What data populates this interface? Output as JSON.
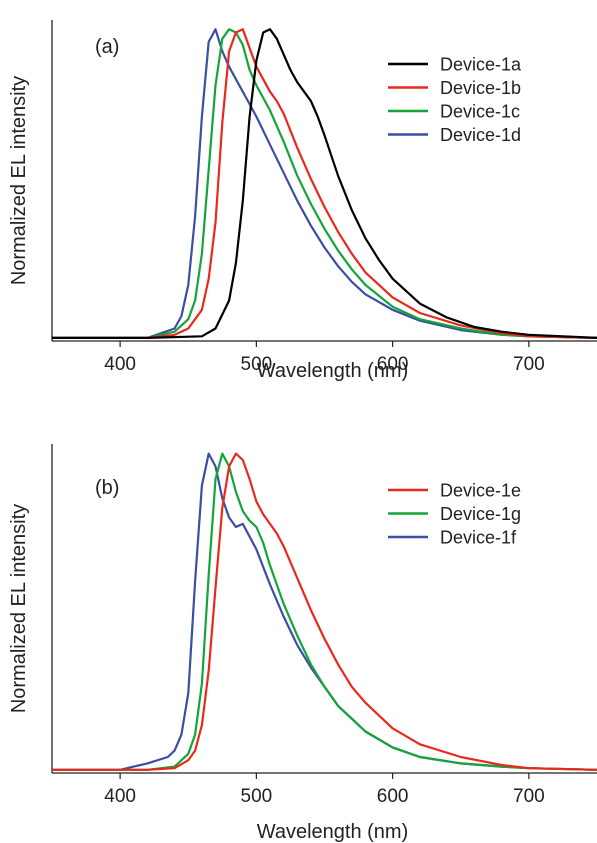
{
  "chart_data": [
    {
      "type": "line",
      "panel_label": "(a)",
      "xlabel": "Wavelength (nm)",
      "ylabel": "Normalized EL intensity",
      "xlim": [
        350,
        750
      ],
      "ylim": [
        0,
        1.03
      ],
      "xticks": [
        400,
        500,
        600,
        700
      ],
      "grid": false,
      "legend_position": "top-right",
      "series": [
        {
          "name": "Device-1a",
          "color": "#000000",
          "x": [
            350,
            420,
            460,
            470,
            480,
            485,
            490,
            495,
            500,
            505,
            510,
            515,
            520,
            525,
            530,
            535,
            540,
            545,
            550,
            560,
            570,
            580,
            590,
            600,
            620,
            640,
            660,
            680,
            700,
            750
          ],
          "y": [
            0.01,
            0.01,
            0.015,
            0.04,
            0.13,
            0.25,
            0.45,
            0.72,
            0.9,
            0.99,
            1.0,
            0.97,
            0.92,
            0.87,
            0.83,
            0.8,
            0.77,
            0.72,
            0.66,
            0.53,
            0.42,
            0.33,
            0.26,
            0.2,
            0.12,
            0.075,
            0.045,
            0.03,
            0.02,
            0.01
          ]
        },
        {
          "name": "Device-1b",
          "color": "#e8291c",
          "x": [
            350,
            420,
            440,
            450,
            460,
            465,
            470,
            475,
            480,
            485,
            490,
            495,
            500,
            505,
            510,
            515,
            520,
            530,
            540,
            550,
            560,
            570,
            580,
            600,
            620,
            650,
            680,
            700,
            750
          ],
          "y": [
            0.01,
            0.01,
            0.02,
            0.04,
            0.1,
            0.2,
            0.38,
            0.7,
            0.93,
            0.99,
            1.0,
            0.94,
            0.88,
            0.84,
            0.8,
            0.77,
            0.73,
            0.62,
            0.52,
            0.43,
            0.35,
            0.28,
            0.22,
            0.14,
            0.09,
            0.05,
            0.025,
            0.015,
            0.01
          ]
        },
        {
          "name": "Device-1c",
          "color": "#13a538",
          "x": [
            350,
            420,
            440,
            450,
            455,
            460,
            465,
            470,
            475,
            480,
            485,
            490,
            495,
            500,
            505,
            510,
            520,
            530,
            540,
            550,
            560,
            570,
            580,
            600,
            620,
            650,
            680,
            700,
            750
          ],
          "y": [
            0.01,
            0.01,
            0.03,
            0.07,
            0.13,
            0.28,
            0.55,
            0.82,
            0.97,
            1.0,
            0.99,
            0.95,
            0.87,
            0.82,
            0.78,
            0.74,
            0.64,
            0.53,
            0.44,
            0.36,
            0.29,
            0.23,
            0.18,
            0.11,
            0.07,
            0.04,
            0.02,
            0.015,
            0.01
          ]
        },
        {
          "name": "Device-1d",
          "color": "#3b4ea6",
          "x": [
            350,
            420,
            440,
            445,
            450,
            455,
            460,
            465,
            470,
            475,
            480,
            485,
            490,
            495,
            500,
            510,
            520,
            530,
            540,
            550,
            560,
            570,
            580,
            600,
            620,
            650,
            680,
            700,
            750
          ],
          "y": [
            0.01,
            0.01,
            0.04,
            0.08,
            0.18,
            0.4,
            0.72,
            0.96,
            1.0,
            0.93,
            0.88,
            0.84,
            0.8,
            0.76,
            0.72,
            0.63,
            0.54,
            0.45,
            0.37,
            0.3,
            0.24,
            0.19,
            0.15,
            0.1,
            0.065,
            0.035,
            0.02,
            0.015,
            0.01
          ]
        }
      ]
    },
    {
      "type": "line",
      "panel_label": "(b)",
      "xlabel": "Wavelength (nm)",
      "ylabel": "Normalized EL intensity",
      "xlim": [
        350,
        750
      ],
      "ylim": [
        0,
        1.03
      ],
      "xticks": [
        400,
        500,
        600,
        700
      ],
      "grid": false,
      "legend_position": "top-right",
      "series": [
        {
          "name": "Device-1e",
          "color": "#e8291c",
          "x": [
            350,
            420,
            440,
            450,
            455,
            460,
            465,
            470,
            475,
            480,
            485,
            490,
            495,
            500,
            505,
            510,
            515,
            520,
            530,
            540,
            550,
            560,
            570,
            580,
            600,
            620,
            650,
            680,
            700,
            750
          ],
          "y": [
            0.01,
            0.01,
            0.015,
            0.04,
            0.07,
            0.15,
            0.32,
            0.58,
            0.83,
            0.96,
            1.0,
            0.98,
            0.92,
            0.85,
            0.81,
            0.78,
            0.75,
            0.71,
            0.61,
            0.51,
            0.42,
            0.34,
            0.27,
            0.22,
            0.14,
            0.09,
            0.05,
            0.025,
            0.015,
            0.01
          ]
        },
        {
          "name": "Device-1g",
          "color": "#13a538",
          "x": [
            350,
            420,
            440,
            450,
            455,
            460,
            465,
            470,
            475,
            480,
            485,
            490,
            495,
            500,
            505,
            510,
            520,
            530,
            540,
            550,
            560,
            570,
            580,
            600,
            620,
            650,
            680,
            700,
            750
          ],
          "y": [
            0.01,
            0.01,
            0.02,
            0.06,
            0.12,
            0.28,
            0.62,
            0.92,
            1.0,
            0.96,
            0.88,
            0.82,
            0.79,
            0.77,
            0.72,
            0.65,
            0.53,
            0.43,
            0.34,
            0.27,
            0.21,
            0.17,
            0.13,
            0.08,
            0.05,
            0.03,
            0.02,
            0.015,
            0.01
          ]
        },
        {
          "name": "Device-1f",
          "color": "#3b4ea6",
          "x": [
            350,
            400,
            420,
            435,
            440,
            445,
            450,
            455,
            460,
            465,
            470,
            475,
            480,
            485,
            490,
            495,
            500,
            510,
            520,
            530,
            540,
            550,
            560,
            570,
            580,
            600,
            620,
            650,
            680,
            700,
            750
          ],
          "y": [
            0.01,
            0.01,
            0.03,
            0.05,
            0.07,
            0.12,
            0.25,
            0.6,
            0.9,
            1.0,
            0.96,
            0.86,
            0.8,
            0.77,
            0.78,
            0.74,
            0.7,
            0.59,
            0.49,
            0.4,
            0.33,
            0.27,
            0.21,
            0.17,
            0.13,
            0.08,
            0.05,
            0.03,
            0.02,
            0.015,
            0.01
          ]
        }
      ]
    }
  ]
}
